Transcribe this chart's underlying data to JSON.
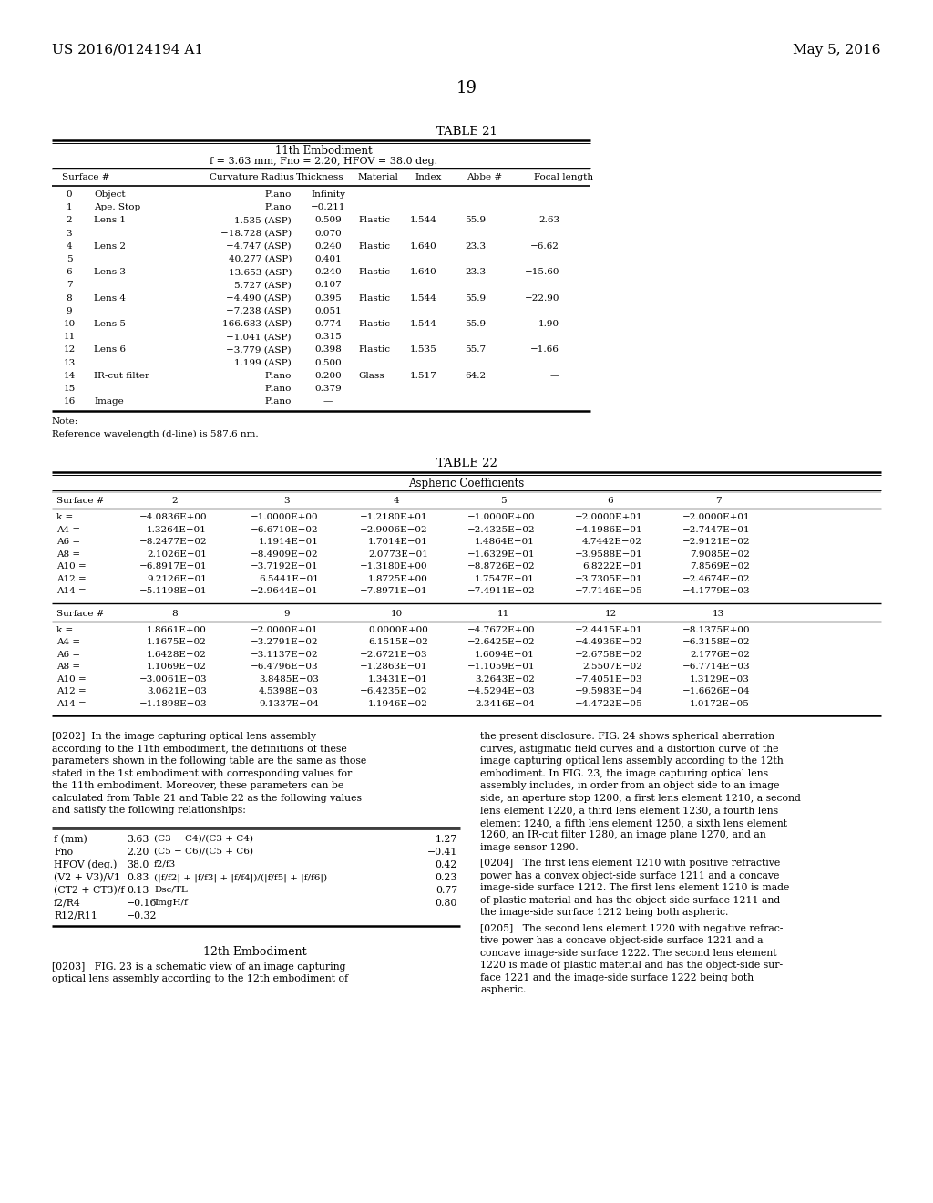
{
  "page_number": "19",
  "header_left": "US 2016/0124194 A1",
  "header_right": "May 5, 2016",
  "table21_title": "TABLE 21",
  "table21_subtitle1": "11th Embodiment",
  "table21_subtitle2": "f = 3.63 mm, Fno = 2.20, HFOV = 38.0 deg.",
  "table21_rows": [
    [
      "0",
      "Object",
      "Plano",
      "Infinity",
      "",
      "",
      "",
      ""
    ],
    [
      "1",
      "Ape. Stop",
      "Plano",
      "−0.211",
      "",
      "",
      "",
      ""
    ],
    [
      "2",
      "Lens 1",
      "1.535 (ASP)",
      "0.509",
      "Plastic",
      "1.544",
      "55.9",
      "2.63"
    ],
    [
      "3",
      "",
      "−18.728 (ASP)",
      "0.070",
      "",
      "",
      "",
      ""
    ],
    [
      "4",
      "Lens 2",
      "−4.747 (ASP)",
      "0.240",
      "Plastic",
      "1.640",
      "23.3",
      "−6.62"
    ],
    [
      "5",
      "",
      "40.277 (ASP)",
      "0.401",
      "",
      "",
      "",
      ""
    ],
    [
      "6",
      "Lens 3",
      "13.653 (ASP)",
      "0.240",
      "Plastic",
      "1.640",
      "23.3",
      "−15.60"
    ],
    [
      "7",
      "",
      "5.727 (ASP)",
      "0.107",
      "",
      "",
      "",
      ""
    ],
    [
      "8",
      "Lens 4",
      "−4.490 (ASP)",
      "0.395",
      "Plastic",
      "1.544",
      "55.9",
      "−22.90"
    ],
    [
      "9",
      "",
      "−7.238 (ASP)",
      "0.051",
      "",
      "",
      "",
      ""
    ],
    [
      "10",
      "Lens 5",
      "166.683 (ASP)",
      "0.774",
      "Plastic",
      "1.544",
      "55.9",
      "1.90"
    ],
    [
      "11",
      "",
      "−1.041 (ASP)",
      "0.315",
      "",
      "",
      "",
      ""
    ],
    [
      "12",
      "Lens 6",
      "−3.779 (ASP)",
      "0.398",
      "Plastic",
      "1.535",
      "55.7",
      "−1.66"
    ],
    [
      "13",
      "",
      "1.199 (ASP)",
      "0.500",
      "",
      "",
      "",
      ""
    ],
    [
      "14",
      "IR-cut filter",
      "Plano",
      "0.200",
      "Glass",
      "1.517",
      "64.2",
      "—"
    ],
    [
      "15",
      "",
      "Plano",
      "0.379",
      "",
      "",
      "",
      ""
    ],
    [
      "16",
      "Image",
      "Plano",
      "—",
      "",
      "",
      "",
      ""
    ]
  ],
  "table22_title": "TABLE 22",
  "table22_subtitle": "Aspheric Coefficients",
  "table22_headers1": [
    "Surface #",
    "2",
    "3",
    "4",
    "5",
    "6",
    "7"
  ],
  "table22_rows1": [
    [
      "k =",
      "−4.0836E+00",
      "−1.0000E+00",
      "−1.2180E+01",
      "−1.0000E+00",
      "−2.0000E+01",
      "−2.0000E+01"
    ],
    [
      "A4 =",
      "1.3264E−01",
      "−6.6710E−02",
      "−2.9006E−02",
      "−2.4325E−02",
      "−4.1986E−01",
      "−2.7447E−01"
    ],
    [
      "A6 =",
      "−8.2477E−02",
      "1.1914E−01",
      "1.7014E−01",
      "1.4864E−01",
      "4.7442E−02",
      "−2.9121E−02"
    ],
    [
      "A8 =",
      "2.1026E−01",
      "−8.4909E−02",
      "2.0773E−01",
      "−1.6329E−01",
      "−3.9588E−01",
      "7.9085E−02"
    ],
    [
      "A10 =",
      "−6.8917E−01",
      "−3.7192E−01",
      "−1.3180E+00",
      "−8.8726E−02",
      "6.8222E−01",
      "7.8569E−02"
    ],
    [
      "A12 =",
      "9.2126E−01",
      "6.5441E−01",
      "1.8725E+00",
      "1.7547E−01",
      "−3.7305E−01",
      "−2.4674E−02"
    ],
    [
      "A14 =",
      "−5.1198E−01",
      "−2.9644E−01",
      "−7.8971E−01",
      "−7.4911E−02",
      "−7.7146E−05",
      "−4.1779E−03"
    ]
  ],
  "table22_headers2": [
    "Surface #",
    "8",
    "9",
    "10",
    "11",
    "12",
    "13"
  ],
  "table22_rows2": [
    [
      "k =",
      "1.8661E+00",
      "−2.0000E+01",
      "0.0000E+00",
      "−4.7672E+00",
      "−2.4415E+01",
      "−8.1375E+00"
    ],
    [
      "A4 =",
      "1.1675E−02",
      "−3.2791E−02",
      "6.1515E−02",
      "−2.6425E−02",
      "−4.4936E−02",
      "−6.3158E−02"
    ],
    [
      "A6 =",
      "1.6428E−02",
      "−3.1137E−02",
      "−2.6721E−03",
      "1.6094E−01",
      "−2.6758E−02",
      "2.1776E−02"
    ],
    [
      "A8 =",
      "1.1069E−02",
      "−6.4796E−03",
      "−1.2863E−01",
      "−1.1059E−01",
      "2.5507E−02",
      "−6.7714E−03"
    ],
    [
      "A10 =",
      "−3.0061E−03",
      "3.8485E−03",
      "1.3431E−01",
      "3.2643E−02",
      "−7.4051E−03",
      "1.3129E−03"
    ],
    [
      "A12 =",
      "3.0621E−03",
      "4.5398E−03",
      "−6.4235E−02",
      "−4.5294E−03",
      "−9.5983E−04",
      "−1.6626E−04"
    ],
    [
      "A14 =",
      "−1.1898E−03",
      "9.1337E−04",
      "1.1946E−02",
      "2.3416E−04",
      "−4.4722E−05",
      "1.0172E−05"
    ]
  ],
  "params_rows": [
    [
      "f (mm)",
      "3.63",
      "(C3 − C4)/(C3 + C4)",
      "1.27"
    ],
    [
      "Fno",
      "2.20",
      "(C5 − C6)/(C5 + C6)",
      "−0.41"
    ],
    [
      "HFOV (deg.)",
      "38.0",
      "f2/f3",
      "0.42"
    ],
    [
      "(V2 + V3)/V1",
      "0.83",
      "(|f/f2| + |f/f3| + |f/f4|)/(|f/f5| + |f/f6|)",
      "0.23"
    ],
    [
      "(CT2 + CT3)/f",
      "0.13",
      "Dsc/TL",
      "0.77"
    ],
    [
      "f2/R4",
      "−0.16",
      "ImgH/f",
      "0.80"
    ],
    [
      "R12/R11",
      "−0.32",
      "",
      ""
    ]
  ],
  "bg_color": "#ffffff"
}
